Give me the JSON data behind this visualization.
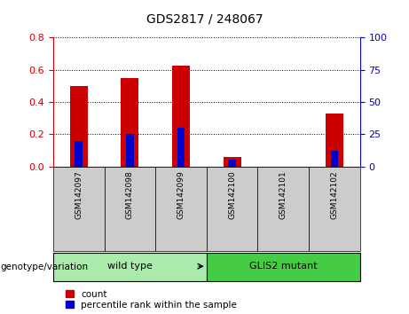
{
  "title": "GDS2817 / 248067",
  "categories": [
    "GSM142097",
    "GSM142098",
    "GSM142099",
    "GSM142100",
    "GSM142101",
    "GSM142102"
  ],
  "count_values": [
    0.5,
    0.55,
    0.625,
    0.06,
    0.0,
    0.33
  ],
  "percentile_values": [
    20,
    25,
    30,
    5,
    0,
    12
  ],
  "left_ylim": [
    0,
    0.8
  ],
  "right_ylim": [
    0,
    100
  ],
  "left_yticks": [
    0,
    0.2,
    0.4,
    0.6,
    0.8
  ],
  "right_yticks": [
    0,
    25,
    50,
    75,
    100
  ],
  "bar_color": "#cc0000",
  "percentile_color": "#0000cc",
  "groups": [
    {
      "label": "wild type",
      "indices": [
        0,
        1,
        2
      ],
      "color": "#aaeaaa"
    },
    {
      "label": "GLIS2 mutant",
      "indices": [
        3,
        4,
        5
      ],
      "color": "#44cc44"
    }
  ],
  "group_label": "genotype/variation",
  "legend_count_label": "count",
  "legend_percentile_label": "percentile rank within the sample",
  "left_axis_color": "#cc0000",
  "right_axis_color": "#0000cc",
  "tick_bg_color": "#cccccc",
  "bar_width": 0.35,
  "percentile_bar_width": 0.15,
  "grid_linestyle": ":"
}
